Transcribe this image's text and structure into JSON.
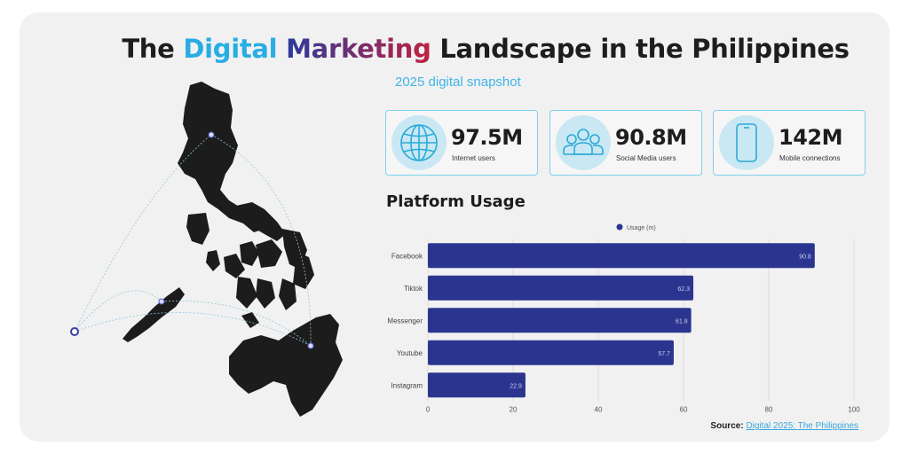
{
  "header": {
    "title_part1": "The ",
    "title_part2": "Digital",
    "title_part3": " ",
    "title_part4": "Marketing",
    "title_part5": " Landscape in the Philippines",
    "subtitle": "2025 digital snapshot"
  },
  "stats": [
    {
      "value": "97.5M",
      "label": "Internet users",
      "icon": "globe-icon"
    },
    {
      "value": "90.8M",
      "label": "Social Media users",
      "icon": "people-icon"
    },
    {
      "value": "142M",
      "label": "Mobile connections",
      "icon": "phone-icon"
    }
  ],
  "section_title": "Platform Usage",
  "source": {
    "label": "Source:",
    "link_text": "Digital 2025: The Philippines"
  },
  "colors": {
    "bar": "#2b3590",
    "accent_blue": "#3fb5e6",
    "accent_red": "#c0213f",
    "map": "#1c1c1c"
  },
  "chart_data": {
    "type": "bar",
    "orientation": "horizontal",
    "categories": [
      "Facebook",
      "Tiktok",
      "Messenger",
      "Youtube",
      "Instagram"
    ],
    "series": [
      {
        "name": "Usage (m)",
        "values": [
          90.8,
          62.3,
          61.8,
          57.7,
          22.9
        ]
      }
    ],
    "xlim": [
      0,
      100
    ],
    "xticks": [
      0,
      20,
      40,
      60,
      80,
      100
    ],
    "grid": true,
    "legend_position": "top"
  }
}
